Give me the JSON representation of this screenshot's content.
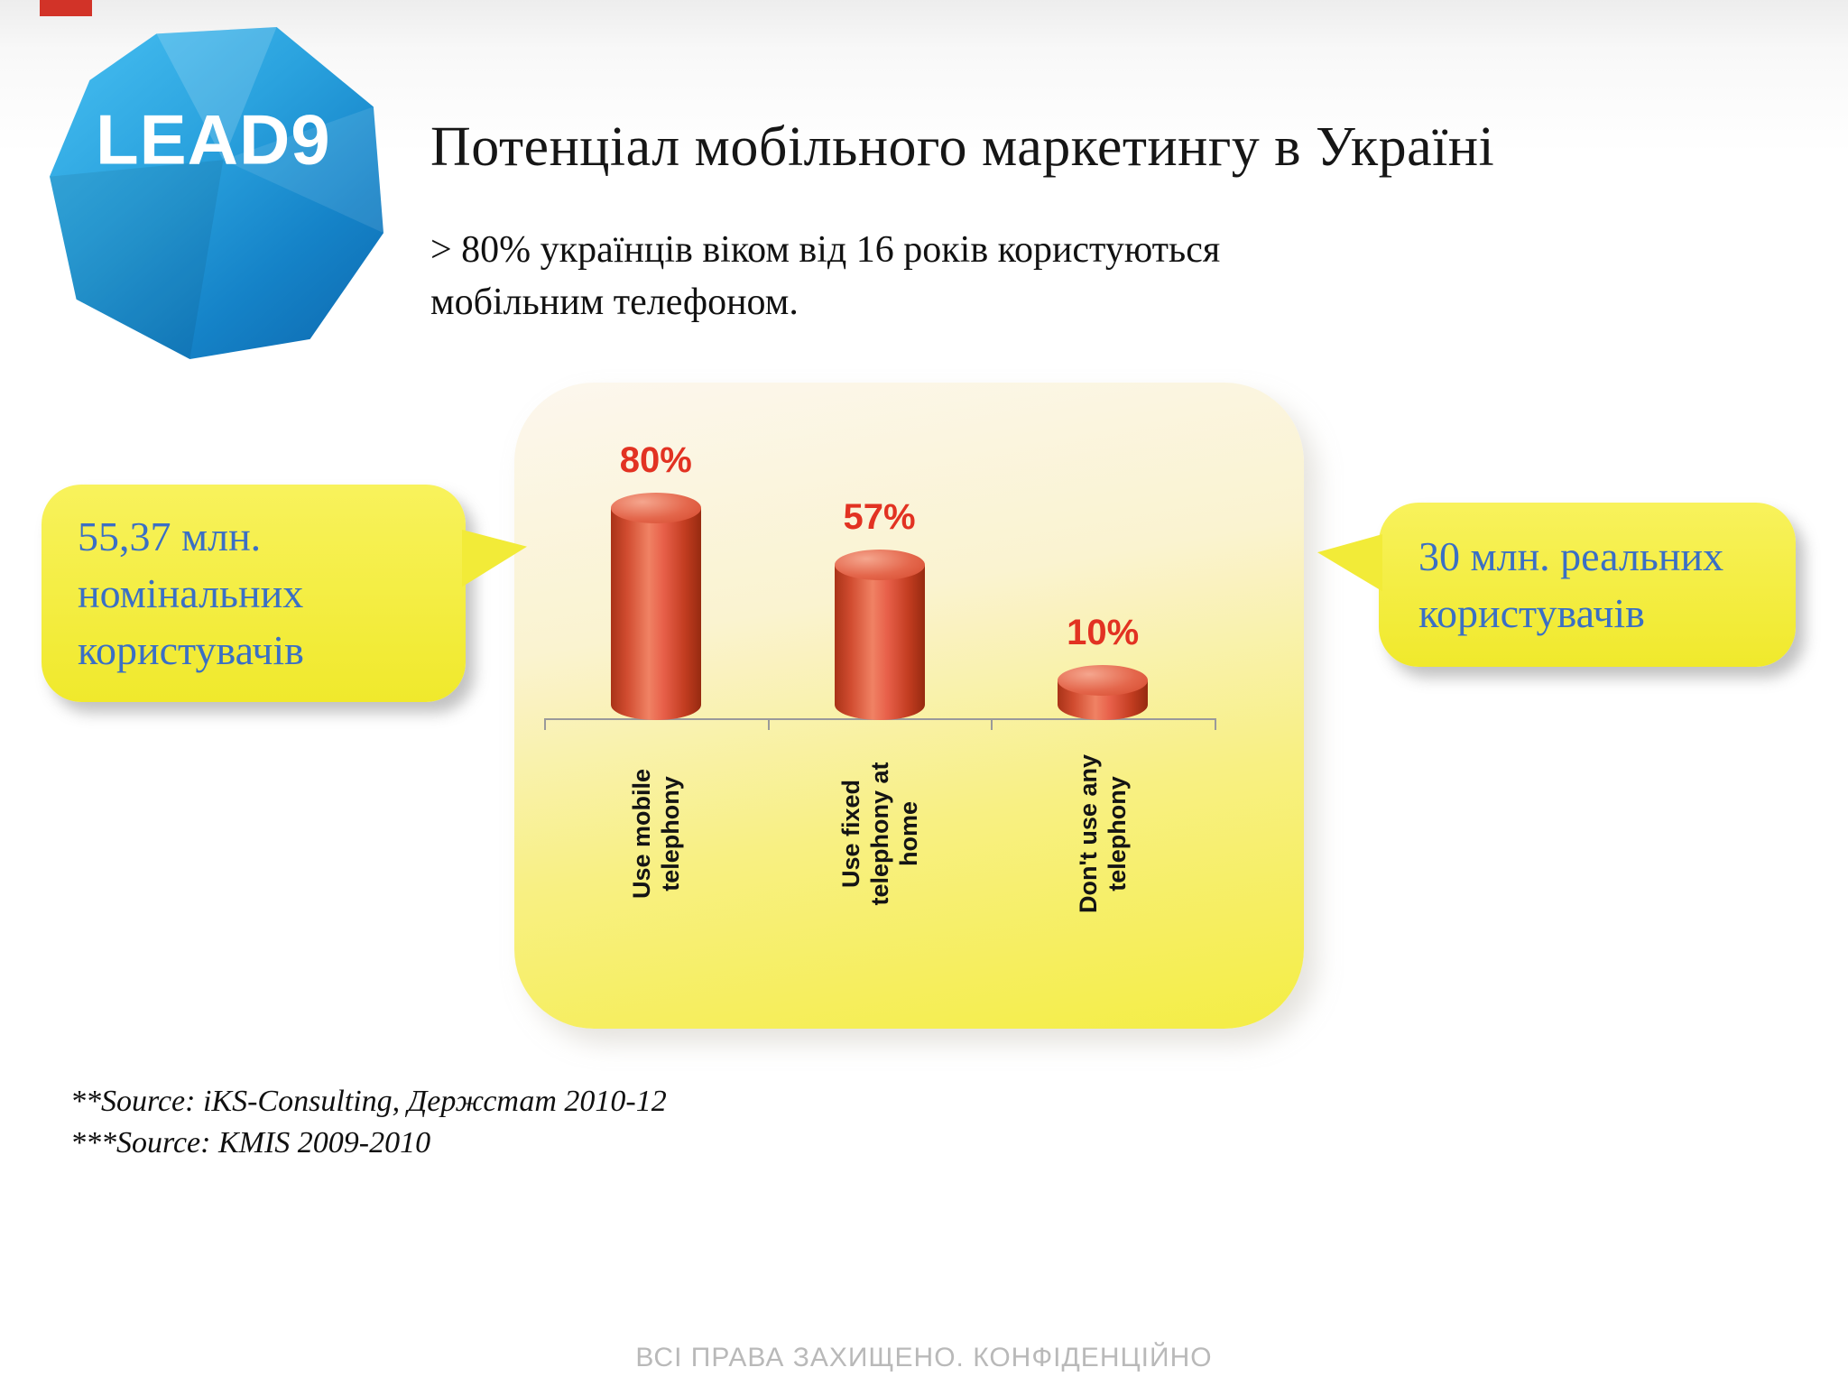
{
  "slide": {
    "logo_text": "LEAD9",
    "title": "Потенціал мобільного маркетингу в Україні",
    "subtitle": {
      "line1": "> 80% українців віком від 16 років користуються",
      "line2": "мобільним телефоном."
    },
    "callout_left": {
      "lines": [
        "55,37 млн.",
        "номінальних",
        "користувачів"
      ]
    },
    "callout_right": {
      "lines": [
        "30 млн. реальних",
        "користувачів"
      ]
    },
    "sources": [
      "**Source: iKS-Consulting, Держстат 2010-12",
      "***Source: KMIS 2009-2010"
    ],
    "footer": "ВСІ ПРАВА ЗАХИЩЕНО. КОНФІДЕНЦІЙНО"
  },
  "chart_data": {
    "type": "bar",
    "categories": [
      "Use mobile telephony",
      "Use fixed telephony at home",
      "Don't use any telephony"
    ],
    "values": [
      80,
      57,
      10
    ],
    "value_labels": [
      "80%",
      "57%",
      "10%"
    ],
    "ylim": [
      0,
      100
    ],
    "grid": false,
    "legend": false,
    "bar_color": "#d9512f",
    "value_label_color": "#e23222"
  },
  "colors": {
    "logo_blue": "#1f93d2",
    "callout_bg": "#f2eb38",
    "callout_text": "#3a6fc5",
    "chart_bg_top": "#fcf7ee",
    "chart_bg_bottom": "#f4ed44",
    "footer_gray": "#b9b9b9"
  }
}
